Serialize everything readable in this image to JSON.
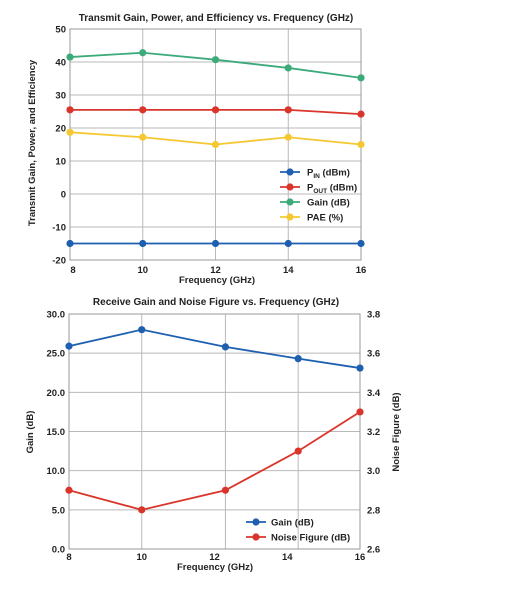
{
  "chart_data": [
    {
      "type": "line",
      "title": "Transmit Gain, Power, and Efficiency vs. Frequency (GHz)",
      "xlabel": "Frequency (GHz)",
      "ylabel": "Transmit Gain, Power, and Efficiency",
      "x": [
        8,
        10,
        12,
        14,
        16
      ],
      "xlim": [
        8,
        16
      ],
      "ylim": [
        -20,
        50
      ],
      "y_ticks": [
        "-20",
        "-10",
        "0",
        "10",
        "20",
        "30",
        "40",
        "50"
      ],
      "x_ticks": [
        "8",
        "10",
        "12",
        "14",
        "16"
      ],
      "grid": true,
      "legend_position": "lower-right",
      "series": [
        {
          "name": "P",
          "sub": "IN",
          "unit": " (dBm)",
          "color": "#1f5fb0",
          "values": [
            -15,
            -15,
            -15,
            -15,
            -15
          ]
        },
        {
          "name": "P",
          "sub": "OUT",
          "unit": " (dBm)",
          "color": "#d9352b",
          "values": [
            25.5,
            25.5,
            25.5,
            25.5,
            24.2
          ]
        },
        {
          "name": "Gain (dB)",
          "sub": "",
          "unit": "",
          "color": "#3daa7a",
          "values": [
            41.5,
            42.8,
            40.7,
            38.2,
            35.2
          ]
        },
        {
          "name": "PAE (%)",
          "sub": "",
          "unit": "",
          "color": "#f5c832",
          "values": [
            18.7,
            17.2,
            15.0,
            17.2,
            15.0
          ]
        }
      ]
    },
    {
      "type": "line",
      "title": "Receive Gain and Noise Figure vs. Frequency (GHz)",
      "xlabel": "Frequency (GHz)",
      "ylabel": "Gain (dB)",
      "y2label": "Noise Figure (dB)",
      "x": [
        8,
        10,
        12,
        14,
        16
      ],
      "xlim": [
        8,
        16
      ],
      "ylim": [
        0,
        30
      ],
      "y2lim": [
        2.6,
        3.8
      ],
      "y_ticks": [
        "0.0",
        "5.0",
        "10.0",
        "15.0",
        "20.0",
        "25.0",
        "30.0"
      ],
      "y2_ticks": [
        "2.6",
        "2.8",
        "3.0",
        "3.2",
        "3.4",
        "3.6",
        "3.8"
      ],
      "x_ticks": [
        "8",
        "10",
        "12",
        "14",
        "16"
      ],
      "grid": true,
      "legend_position": "lower-right",
      "series": [
        {
          "name": "Gain (dB)",
          "axis": "left",
          "color": "#1f5fb0",
          "x": [
            8,
            10,
            12.3,
            14.3,
            16
          ],
          "values": [
            25.9,
            28.0,
            25.8,
            24.3,
            23.1
          ]
        },
        {
          "name": "Noise Figure (dB)",
          "axis": "right",
          "color": "#d9352b",
          "x": [
            8,
            10,
            12.3,
            14.3,
            16
          ],
          "values": [
            2.9,
            2.8,
            2.9,
            3.1,
            3.3
          ]
        }
      ]
    }
  ]
}
